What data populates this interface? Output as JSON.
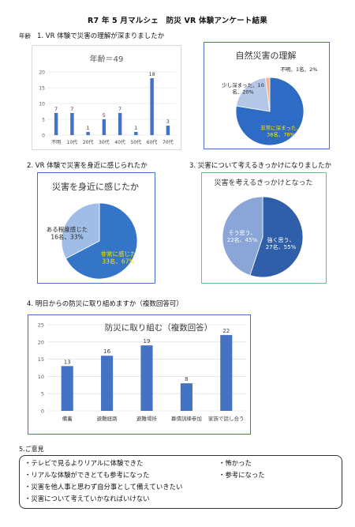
{
  "header": {
    "title": "R7 年 5 月マルシェ　防災 VR 体験アンケート結果"
  },
  "q1": {
    "side_label": "年齢",
    "question": "1. VR 体験で災害の理解が深まりましたか",
    "chart_title": "年齢＝49"
  },
  "q1_pie": {
    "chart_title": "自然災害の理解",
    "labels": [
      "非常に深まった、38名、78%",
      "少し深まった、10名、20%",
      "不明、1名、2%"
    ]
  },
  "q2": {
    "question": "2. VR 体験で災害を身近に感じられたか",
    "chart_title": "災害を身近に感じたか",
    "labels": [
      "非常に感じた 33名、67%",
      "ある程度感じた 16名、33%"
    ]
  },
  "q3": {
    "question": "3. 災害について考えるきっかけになりましたか",
    "chart_title": "災害を考えるきっかけとなった",
    "labels": [
      "強く思う、27名、55%",
      "そう思う、22名、45%"
    ]
  },
  "q4": {
    "question": "4. 明日からの防災に取り組めますか（複数回答可）",
    "chart_title": "防災に取り組む（複数回答）"
  },
  "opinions": {
    "heading": "5.ご意見",
    "items_left": [
      "・テレビで見るよりリアルに体験できた",
      "・リアルな体験ができとても参考になった",
      "・災害を他人事と思わず自分事として備えていきたい",
      "・災害について考えていかなればいけない"
    ],
    "items_right": [
      "・怖かった",
      "・参考になった"
    ]
  },
  "chart_data": [
    {
      "type": "bar",
      "title": "年齢＝49",
      "categories": [
        "不明",
        "10代",
        "20代",
        "30代",
        "40代",
        "50代",
        "60代",
        "70代"
      ],
      "values": [
        7,
        7,
        1,
        5,
        7,
        1,
        18,
        3
      ],
      "ylim": [
        0,
        20
      ],
      "yticks": [
        0,
        5,
        10,
        15,
        20
      ],
      "color": "#4472c4"
    },
    {
      "type": "pie",
      "title": "自然災害の理解",
      "labels": [
        "非常に深まった",
        "少し深まった",
        "不明"
      ],
      "values": [
        38,
        10,
        1
      ],
      "percents": [
        78,
        20,
        2
      ],
      "colors": [
        "#2e6bc4",
        "#b4c7e7",
        "#f4b183"
      ]
    },
    {
      "type": "pie",
      "title": "災害を身近に感じたか",
      "labels": [
        "非常に感じた",
        "ある程度感じた"
      ],
      "values": [
        33,
        16
      ],
      "percents": [
        67,
        33
      ],
      "colors": [
        "#3575c8",
        "#9fbde6"
      ]
    },
    {
      "type": "pie",
      "title": "災害を考えるきっかけとなった",
      "labels": [
        "強く思う",
        "そう思う"
      ],
      "values": [
        27,
        22
      ],
      "percents": [
        55,
        45
      ],
      "colors": [
        "#2f5fa8",
        "#8aa6d6"
      ]
    },
    {
      "type": "bar",
      "title": "防災に取り組む（複数回答）",
      "categories": [
        "備蓄",
        "避難経路",
        "避難場所",
        "募債訓練参加",
        "家族で話し合う"
      ],
      "values": [
        13,
        16,
        19,
        8,
        22
      ],
      "ylim": [
        0,
        25
      ],
      "yticks": [
        0,
        5,
        10,
        15,
        20,
        25
      ],
      "color": "#4472c4"
    }
  ]
}
